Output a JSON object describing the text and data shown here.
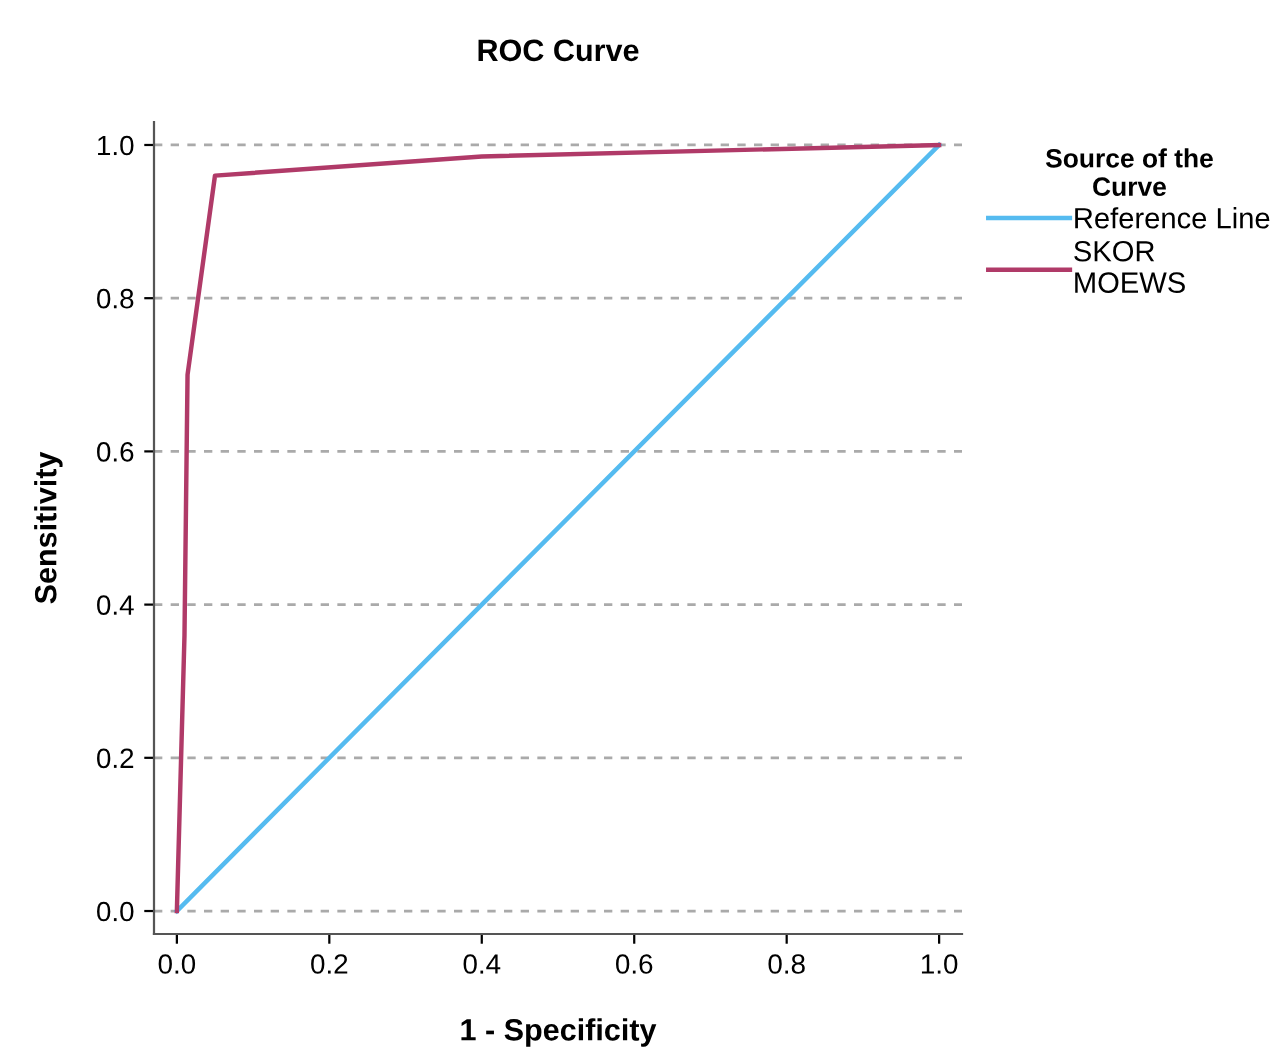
{
  "chart_data": {
    "type": "line",
    "title": "ROC Curve",
    "xlabel": "1 - Specificity",
    "ylabel": "Sensitivity",
    "legend_title": "Source of the\nCurve",
    "xlim": [
      -0.03,
      1.03
    ],
    "ylim": [
      -0.03,
      1.03
    ],
    "xticks": [
      {
        "value": 0,
        "label": "0.0"
      },
      0.2,
      0.4,
      0.6,
      0.8,
      {
        "value": 1,
        "label": "1.0"
      }
    ],
    "yticks": [
      {
        "value": 0,
        "label": "0.0"
      },
      0.2,
      0.4,
      0.6,
      0.8,
      {
        "value": 1,
        "label": "1.0"
      }
    ],
    "grid": "y",
    "legend": "right",
    "series": [
      {
        "name": "Reference Line",
        "color": "#55bbf0",
        "x": [
          0,
          1
        ],
        "values": [
          0,
          1
        ]
      },
      {
        "name": "SKOR\nMOEWS",
        "color": "#b03a68",
        "x": [
          0,
          0.01,
          0.014,
          0.05,
          0.4,
          1
        ],
        "values": [
          0,
          0.36,
          0.7,
          0.96,
          0.985,
          1
        ]
      }
    ]
  }
}
